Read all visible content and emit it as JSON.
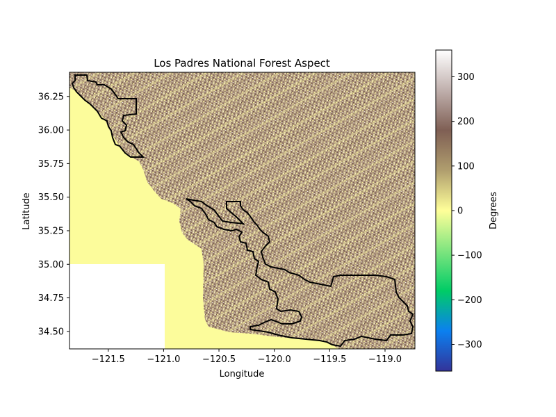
{
  "title": "Los Padres National Forest Aspect",
  "xlabel": "Longitude",
  "ylabel": "Latitude",
  "colorbar": {
    "label": "Degrees",
    "range": [
      -360,
      360
    ],
    "ticks": [
      "300",
      "200",
      "100",
      "0",
      "−100",
      "−200",
      "−300"
    ],
    "tick_values": [
      300,
      200,
      100,
      0,
      -100,
      -200,
      -300
    ],
    "colormap": "terrain",
    "stops": [
      "#333399",
      "#0b80f0",
      "#00cc66",
      "#7fe57f",
      "#ffff99",
      "#b09e6e",
      "#7f5f54",
      "#c0b0ad",
      "#ffffff"
    ]
  },
  "x_ticks": [
    "−121.5",
    "−121.0",
    "−120.5",
    "−120.0",
    "−119.5",
    "−119.0"
  ],
  "x_tick_values": [
    -121.5,
    -121.0,
    -120.5,
    -120.0,
    -119.5,
    -119.0
  ],
  "y_ticks": [
    "36.25",
    "36.00",
    "35.75",
    "35.50",
    "35.25",
    "35.00",
    "34.75",
    "34.50"
  ],
  "y_tick_values": [
    36.25,
    36.0,
    35.75,
    35.5,
    35.25,
    35.0,
    34.75,
    34.5
  ],
  "xlim": [
    -121.85,
    -118.73
  ],
  "ylim": [
    34.37,
    36.43
  ],
  "colors": {
    "ocean": "#fcfc9b",
    "terrain_light": "#e8dc9a",
    "terrain_dark": "#8a6e5c",
    "boundary": "#000000",
    "nodata": "#ffffff"
  }
}
